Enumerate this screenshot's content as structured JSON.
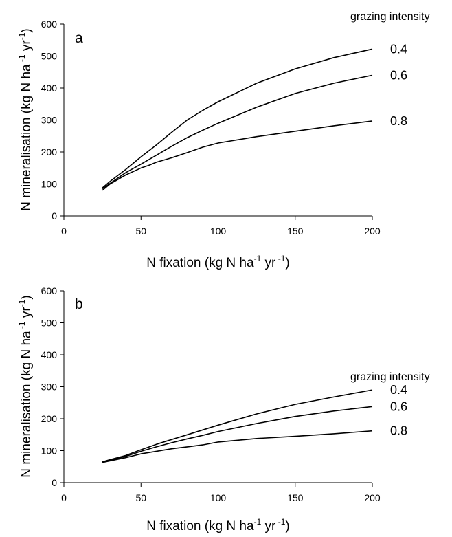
{
  "chart_data": [
    {
      "type": "line",
      "panel": "a",
      "xlim": [
        0,
        200
      ],
      "ylim": [
        0,
        600
      ],
      "xticks": [
        "0",
        "50",
        "100",
        "150",
        "200"
      ],
      "yticks": [
        "0",
        "100",
        "200",
        "300",
        "400",
        "500",
        "600"
      ],
      "xlabel": {
        "main": "N fixation (kg N ha",
        "sup1": "-1",
        "mid": " yr",
        "sup2": " -1",
        "end": ")"
      },
      "ylabel": {
        "main": "N mineralisation (kg N ha",
        "sup1": " -1",
        "mid": " yr",
        "sup2": "-1",
        "end": ")"
      },
      "legend_title": "grazing intensity",
      "grid": false,
      "series": [
        {
          "name": "0.4",
          "x": [
            25,
            30,
            40,
            50,
            60,
            70,
            80,
            90,
            100,
            125,
            150,
            175,
            200
          ],
          "y": [
            88,
            108,
            145,
            185,
            222,
            262,
            300,
            330,
            357,
            415,
            460,
            495,
            522
          ]
        },
        {
          "name": "0.6",
          "x": [
            25,
            30,
            40,
            50,
            60,
            70,
            80,
            90,
            100,
            125,
            150,
            175,
            200
          ],
          "y": [
            85,
            102,
            135,
            162,
            190,
            218,
            245,
            268,
            290,
            340,
            383,
            415,
            440
          ]
        },
        {
          "name": "0.8",
          "x": [
            25,
            30,
            40,
            50,
            55,
            60,
            65,
            70,
            80,
            90,
            100,
            125,
            150,
            175,
            200
          ],
          "y": [
            80,
            100,
            128,
            150,
            158,
            168,
            175,
            182,
            198,
            215,
            228,
            248,
            265,
            282,
            297
          ]
        }
      ]
    },
    {
      "type": "line",
      "panel": "b",
      "xlim": [
        0,
        200
      ],
      "ylim": [
        0,
        600
      ],
      "xticks": [
        "0",
        "50",
        "100",
        "150",
        "200"
      ],
      "yticks": [
        "0",
        "100",
        "200",
        "300",
        "400",
        "500",
        "600"
      ],
      "xlabel": {
        "main": "N fixation (kg N ha",
        "sup1": "-1",
        "mid": " yr",
        "sup2": " -1",
        "end": ")"
      },
      "ylabel": {
        "main": "N mineralisation (kg N ha",
        "sup1": " -1",
        "mid": " yr",
        "sup2": "-1",
        "end": ")"
      },
      "legend_title": "grazing intensity",
      "grid": false,
      "series": [
        {
          "name": "0.4",
          "x": [
            25,
            30,
            40,
            50,
            60,
            70,
            80,
            90,
            100,
            125,
            150,
            175,
            200
          ],
          "y": [
            65,
            72,
            85,
            103,
            120,
            135,
            150,
            165,
            180,
            215,
            245,
            268,
            290
          ]
        },
        {
          "name": "0.6",
          "x": [
            25,
            30,
            40,
            50,
            60,
            70,
            80,
            90,
            100,
            125,
            150,
            175,
            200
          ],
          "y": [
            64,
            70,
            82,
            98,
            112,
            125,
            137,
            148,
            160,
            185,
            207,
            224,
            238
          ]
        },
        {
          "name": "0.8",
          "x": [
            25,
            30,
            40,
            50,
            60,
            70,
            80,
            90,
            100,
            125,
            150,
            175,
            200
          ],
          "y": [
            63,
            68,
            78,
            90,
            98,
            106,
            112,
            118,
            127,
            138,
            145,
            153,
            162
          ]
        }
      ]
    }
  ]
}
